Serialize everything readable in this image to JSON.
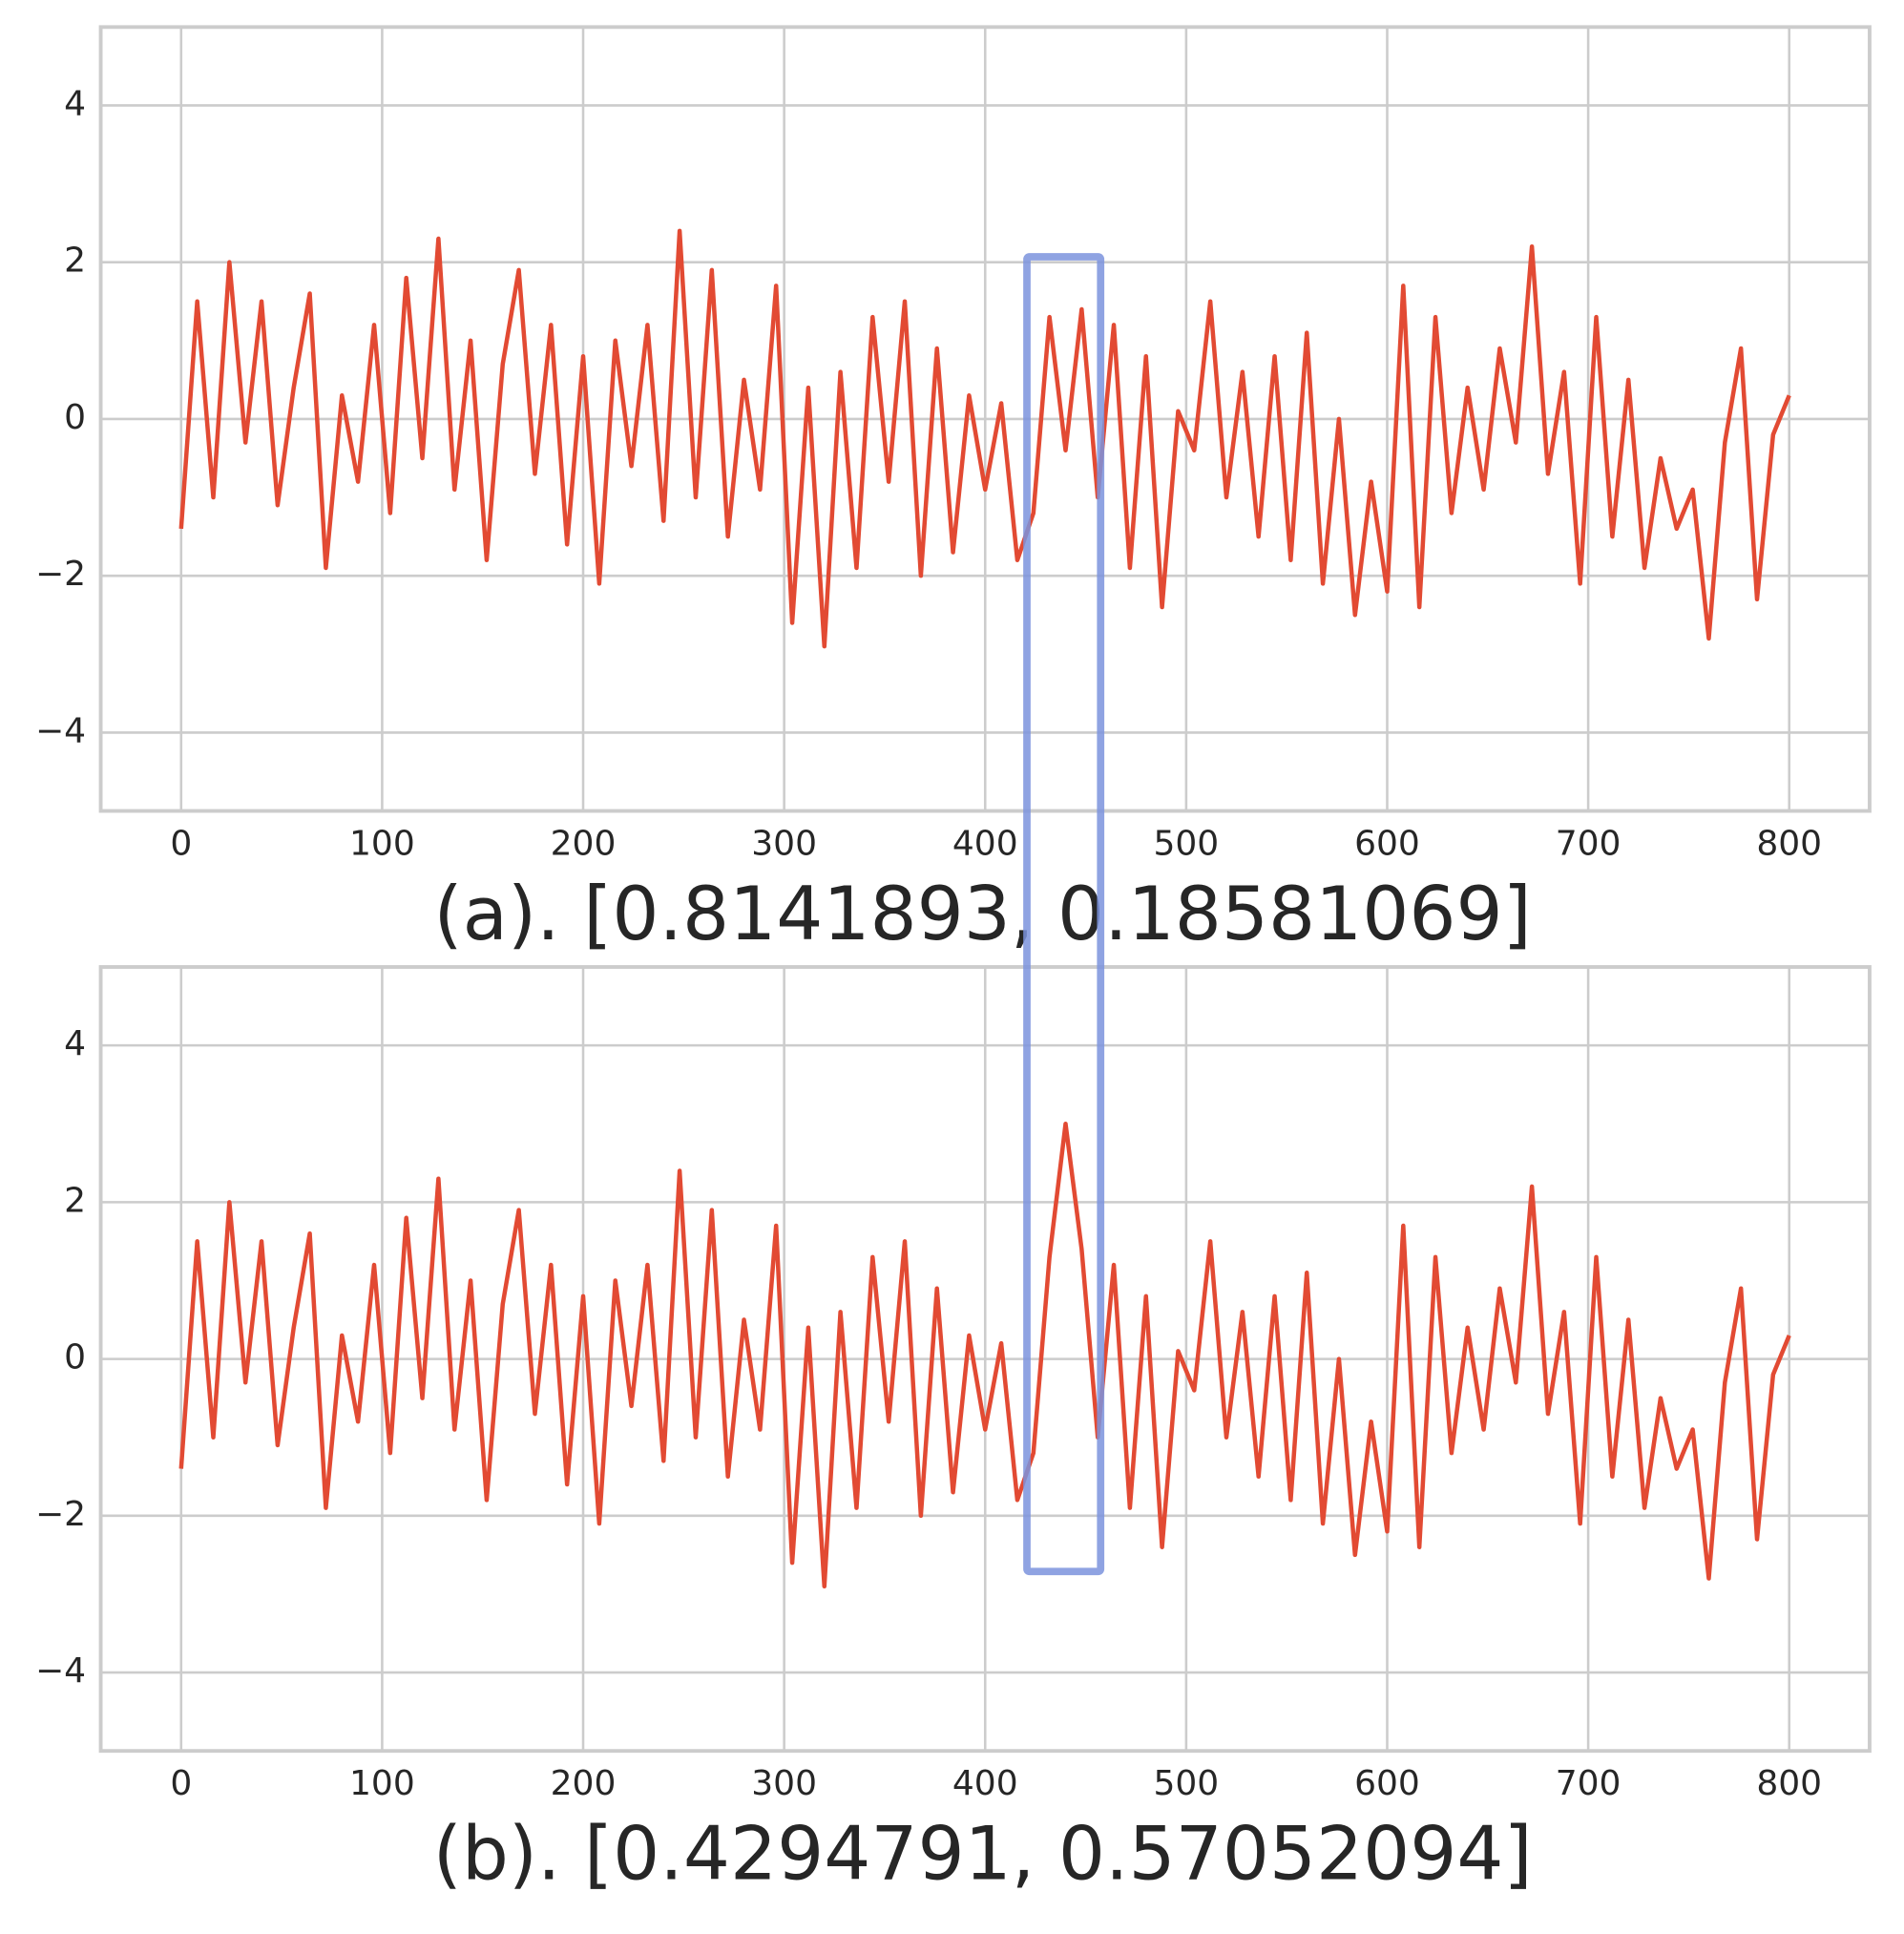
{
  "chart_data": [
    {
      "type": "line",
      "title": "(a). [0.8141893, 0.18581069]",
      "x": [
        0,
        8,
        16,
        24,
        32,
        40,
        48,
        56,
        64,
        72,
        80,
        88,
        96,
        104,
        112,
        120,
        128,
        136,
        144,
        152,
        160,
        168,
        176,
        184,
        192,
        200,
        208,
        216,
        224,
        232,
        240,
        248,
        256,
        264,
        272,
        280,
        288,
        296,
        304,
        312,
        320,
        328,
        336,
        344,
        352,
        360,
        368,
        376,
        384,
        392,
        400,
        408,
        416,
        424,
        432,
        440,
        448,
        456,
        464,
        472,
        480,
        488,
        496,
        504,
        512,
        520,
        528,
        536,
        544,
        552,
        560,
        568,
        576,
        584,
        592,
        600,
        608,
        616,
        624,
        632,
        640,
        648,
        656,
        664,
        672,
        680,
        688,
        696,
        704,
        712,
        720,
        728,
        736,
        744,
        752,
        760,
        768,
        776,
        784,
        792,
        800
      ],
      "values": [
        -1.4,
        1.5,
        -1.0,
        2.0,
        -0.3,
        1.5,
        -1.1,
        0.4,
        1.6,
        -1.9,
        0.3,
        -0.8,
        1.2,
        -1.2,
        1.8,
        -0.5,
        2.3,
        -0.9,
        1.0,
        -1.8,
        0.7,
        1.9,
        -0.7,
        1.2,
        -1.6,
        0.8,
        -2.1,
        1.0,
        -0.6,
        1.2,
        -1.3,
        2.4,
        -1.0,
        1.9,
        -1.5,
        0.5,
        -0.9,
        1.7,
        -2.6,
        0.4,
        -2.9,
        0.6,
        -1.9,
        1.3,
        -0.8,
        1.5,
        -2.0,
        0.9,
        -1.7,
        0.3,
        -0.9,
        0.2,
        -1.8,
        -1.2,
        1.3,
        -0.4,
        1.4,
        -1.0,
        1.2,
        -1.9,
        0.8,
        -2.4,
        0.1,
        -0.4,
        1.5,
        -1.0,
        0.6,
        -1.5,
        0.8,
        -1.8,
        1.1,
        -2.1,
        0.0,
        -2.5,
        -0.8,
        -2.2,
        1.7,
        -2.4,
        1.3,
        -1.2,
        0.4,
        -0.9,
        0.9,
        -0.3,
        2.2,
        -0.7,
        0.6,
        -2.1,
        1.3,
        -1.5,
        0.5,
        -1.9,
        -0.5,
        -1.4,
        -0.9,
        -2.8,
        -0.3,
        0.9,
        -2.3,
        -0.2,
        0.3
      ],
      "color": "#e24a33",
      "xlim": [
        -40,
        840
      ],
      "ylim": [
        -5,
        5
      ],
      "xticks": [
        0,
        100,
        200,
        300,
        400,
        500,
        600,
        700,
        800
      ],
      "yticks": [
        {
          "value": -4,
          "label": "−4"
        },
        {
          "value": -2,
          "label": "−2"
        },
        0,
        2,
        4
      ],
      "grid": true
    },
    {
      "type": "line",
      "title": "(b). [0.4294791, 0.57052094]",
      "x": [
        0,
        8,
        16,
        24,
        32,
        40,
        48,
        56,
        64,
        72,
        80,
        88,
        96,
        104,
        112,
        120,
        128,
        136,
        144,
        152,
        160,
        168,
        176,
        184,
        192,
        200,
        208,
        216,
        224,
        232,
        240,
        248,
        256,
        264,
        272,
        280,
        288,
        296,
        304,
        312,
        320,
        328,
        336,
        344,
        352,
        360,
        368,
        376,
        384,
        392,
        400,
        408,
        416,
        424,
        432,
        440,
        448,
        456,
        464,
        472,
        480,
        488,
        496,
        504,
        512,
        520,
        528,
        536,
        544,
        552,
        560,
        568,
        576,
        584,
        592,
        600,
        608,
        616,
        624,
        632,
        640,
        648,
        656,
        664,
        672,
        680,
        688,
        696,
        704,
        712,
        720,
        728,
        736,
        744,
        752,
        760,
        768,
        776,
        784,
        792,
        800
      ],
      "values": [
        -1.4,
        1.5,
        -1.0,
        2.0,
        -0.3,
        1.5,
        -1.1,
        0.4,
        1.6,
        -1.9,
        0.3,
        -0.8,
        1.2,
        -1.2,
        1.8,
        -0.5,
        2.3,
        -0.9,
        1.0,
        -1.8,
        0.7,
        1.9,
        -0.7,
        1.2,
        -1.6,
        0.8,
        -2.1,
        1.0,
        -0.6,
        1.2,
        -1.3,
        2.4,
        -1.0,
        1.9,
        -1.5,
        0.5,
        -0.9,
        1.7,
        -2.6,
        0.4,
        -2.9,
        0.6,
        -1.9,
        1.3,
        -0.8,
        1.5,
        -2.0,
        0.9,
        -1.7,
        0.3,
        -0.9,
        0.2,
        -1.8,
        -1.2,
        1.3,
        3.0,
        1.4,
        -1.0,
        1.2,
        -1.9,
        0.8,
        -2.4,
        0.1,
        -0.4,
        1.5,
        -1.0,
        0.6,
        -1.5,
        0.8,
        -1.8,
        1.1,
        -2.1,
        0.0,
        -2.5,
        -0.8,
        -2.2,
        1.7,
        -2.4,
        1.3,
        -1.2,
        0.4,
        -0.9,
        0.9,
        -0.3,
        2.2,
        -0.7,
        0.6,
        -2.1,
        1.3,
        -1.5,
        0.5,
        -1.9,
        -0.5,
        -1.4,
        -0.9,
        -2.8,
        -0.3,
        0.9,
        -2.3,
        -0.2,
        0.3
      ],
      "color": "#e24a33",
      "xlim": [
        -40,
        840
      ],
      "ylim": [
        -5,
        5
      ],
      "xticks": [
        0,
        100,
        200,
        300,
        400,
        500,
        600,
        700,
        800
      ],
      "yticks": [
        {
          "value": -4,
          "label": "−4"
        },
        {
          "value": -2,
          "label": "−2"
        },
        0,
        2,
        4
      ],
      "grid": true
    }
  ]
}
